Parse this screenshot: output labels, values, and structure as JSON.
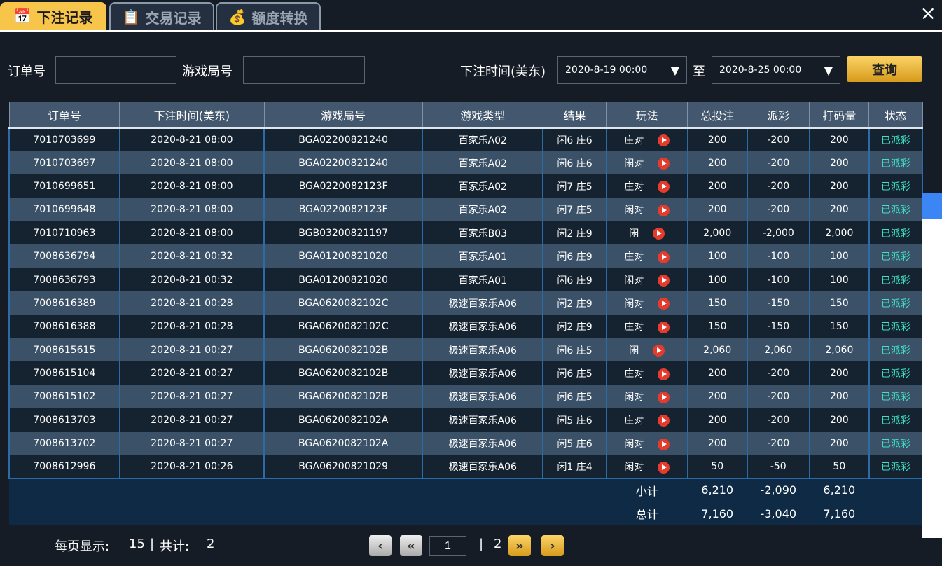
{
  "tabs": [
    {
      "label": "下注记录",
      "icon": "calendar-icon"
    },
    {
      "label": "交易记录",
      "icon": "clipboard-icon"
    },
    {
      "label": "额度转换",
      "icon": "coins-icon"
    }
  ],
  "close_icon": "×",
  "filter": {
    "order_label": "订单号",
    "order_value": "",
    "round_label": "游戏局号",
    "round_value": "",
    "time_label": "下注时间(美东)",
    "from": "2020-8-19 00:00",
    "to_label": "至",
    "to": "2020-8-25 00:00",
    "query": "查询"
  },
  "table": {
    "headers": [
      "订单号",
      "下注时间(美东)",
      "游戏局号",
      "游戏类型",
      "结果",
      "玩法",
      "总投注",
      "派彩",
      "打码量",
      "状态"
    ],
    "rows": [
      [
        "7010703699",
        "2020-8-21 08:00",
        "BGA02200821240",
        "百家乐A02",
        "闲6 庄6",
        "庄对",
        "200",
        "-200",
        "200",
        "已派彩"
      ],
      [
        "7010703697",
        "2020-8-21 08:00",
        "BGA02200821240",
        "百家乐A02",
        "闲6 庄6",
        "闲对",
        "200",
        "-200",
        "200",
        "已派彩"
      ],
      [
        "7010699651",
        "2020-8-21 08:00",
        "BGA0220082123F",
        "百家乐A02",
        "闲7 庄5",
        "庄对",
        "200",
        "-200",
        "200",
        "已派彩"
      ],
      [
        "7010699648",
        "2020-8-21 08:00",
        "BGA0220082123F",
        "百家乐A02",
        "闲7 庄5",
        "闲对",
        "200",
        "-200",
        "200",
        "已派彩"
      ],
      [
        "7010710963",
        "2020-8-21 08:00",
        "BGB03200821197",
        "百家乐B03",
        "闲2 庄9",
        "闲",
        "2,000",
        "-2,000",
        "2,000",
        "已派彩"
      ],
      [
        "7008636794",
        "2020-8-21 00:32",
        "BGA01200821020",
        "百家乐A01",
        "闲6 庄9",
        "庄对",
        "100",
        "-100",
        "100",
        "已派彩"
      ],
      [
        "7008636793",
        "2020-8-21 00:32",
        "BGA01200821020",
        "百家乐A01",
        "闲6 庄9",
        "闲对",
        "100",
        "-100",
        "100",
        "已派彩"
      ],
      [
        "7008616389",
        "2020-8-21 00:28",
        "BGA0620082102C",
        "极速百家乐A06",
        "闲2 庄9",
        "闲对",
        "150",
        "-150",
        "150",
        "已派彩"
      ],
      [
        "7008616388",
        "2020-8-21 00:28",
        "BGA0620082102C",
        "极速百家乐A06",
        "闲2 庄9",
        "庄对",
        "150",
        "-150",
        "150",
        "已派彩"
      ],
      [
        "7008615615",
        "2020-8-21 00:27",
        "BGA0620082102B",
        "极速百家乐A06",
        "闲6 庄5",
        "闲",
        "2,060",
        "2,060",
        "2,060",
        "已派彩"
      ],
      [
        "7008615104",
        "2020-8-21 00:27",
        "BGA0620082102B",
        "极速百家乐A06",
        "闲6 庄5",
        "庄对",
        "200",
        "-200",
        "200",
        "已派彩"
      ],
      [
        "7008615102",
        "2020-8-21 00:27",
        "BGA0620082102B",
        "极速百家乐A06",
        "闲6 庄5",
        "闲对",
        "200",
        "-200",
        "200",
        "已派彩"
      ],
      [
        "7008613703",
        "2020-8-21 00:27",
        "BGA0620082102A",
        "极速百家乐A06",
        "闲5 庄6",
        "庄对",
        "200",
        "-200",
        "200",
        "已派彩"
      ],
      [
        "7008613702",
        "2020-8-21 00:27",
        "BGA0620082102A",
        "极速百家乐A06",
        "闲5 庄6",
        "闲对",
        "200",
        "-200",
        "200",
        "已派彩"
      ],
      [
        "7008612996",
        "2020-8-21 00:26",
        "BGA06200821029",
        "极速百家乐A06",
        "闲1 庄4",
        "闲对",
        "50",
        "-50",
        "50",
        "已派彩"
      ]
    ],
    "subtotal": {
      "label": "小计",
      "bet": "6,210",
      "payout": "-2,090",
      "turnover": "6,210"
    },
    "total": {
      "label": "总计",
      "bet": "7,160",
      "payout": "-3,040",
      "turnover": "7,160"
    }
  },
  "footer": {
    "per_page_label": "每页显示:",
    "per_page": "15",
    "sep": "|",
    "total_label": "共计:",
    "total": "2",
    "page": "1",
    "last_page": "2"
  },
  "colors": {
    "accent": "#f7c54a",
    "status": "#3fe0c4",
    "play": "#e53b2c"
  }
}
